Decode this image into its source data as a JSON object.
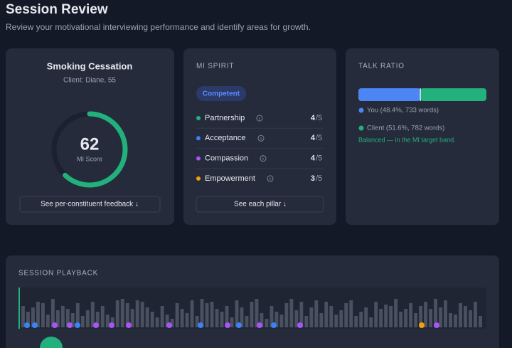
{
  "header": {
    "title": "Session Review",
    "subtitle": "Review your motivational interviewing performance and identify areas for growth."
  },
  "summary": {
    "title": "Smoking Cessation",
    "client": "Client: Diane, 55",
    "score": 62,
    "score_range": [
      0,
      100
    ],
    "score_label": "MI Score",
    "button": "See per-constituent feedback ↓"
  },
  "spirit": {
    "title": "MI SPIRIT",
    "badge": "Competent",
    "pillars": [
      {
        "name": "Partnership",
        "score": 4,
        "max": "/5",
        "color": "#22b07d"
      },
      {
        "name": "Acceptance",
        "score": 4,
        "max": "/5",
        "color": "#3b82f6"
      },
      {
        "name": "Compassion",
        "score": 4,
        "max": "/5",
        "color": "#a855f7"
      },
      {
        "name": "Empowerment",
        "score": 3,
        "max": "/5",
        "color": "#f59e0b"
      }
    ],
    "button": "See each pillar ↓"
  },
  "talk_ratio": {
    "title": "TALK RATIO",
    "parts": [
      {
        "legend": "You (48.4%, 733 words)",
        "percent": 48.4,
        "color": "#4c86f5"
      },
      {
        "legend": "Client (51.6%, 782 words)",
        "percent": 51.6,
        "color": "#22b07d"
      }
    ],
    "note": "Balanced — in the MI target band."
  },
  "playback": {
    "title": "SESSION PLAYBACK",
    "waveform": [
      30,
      22,
      28,
      36,
      34,
      18,
      40,
      24,
      30,
      26,
      20,
      34,
      16,
      24,
      36,
      22,
      30,
      18,
      14,
      38,
      40,
      34,
      26,
      38,
      36,
      28,
      22,
      14,
      30,
      18,
      12,
      34,
      26,
      20,
      38,
      16,
      40,
      34,
      36,
      26,
      22,
      30,
      14,
      38,
      28,
      16,
      36,
      40,
      20,
      12,
      30,
      22,
      18,
      34,
      40,
      24,
      36,
      16,
      28,
      38,
      20,
      36,
      30,
      18,
      24,
      34,
      38,
      16,
      22,
      28,
      14,
      36,
      26,
      32,
      30,
      40,
      22,
      26,
      34,
      20,
      30,
      36,
      26,
      40,
      28,
      38,
      20,
      18,
      34,
      30,
      24,
      36,
      16
    ]
  }
}
